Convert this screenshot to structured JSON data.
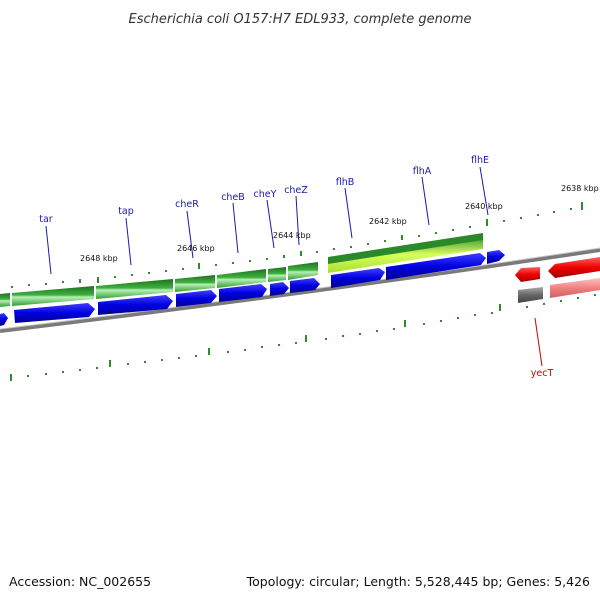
{
  "title": "Escherichia coli O157:H7 EDL933, complete genome",
  "footer": {
    "accession": "Accession: NC_002655",
    "summary": "Topology: circular; Length: 5,528,445 bp; Genes: 5,426"
  },
  "kbp_labels": [
    "2648 kbp",
    "2646 kbp",
    "2644 kbp",
    "2642 kbp",
    "2640 kbp",
    "2638 kbp"
  ],
  "genes_top": [
    "tar",
    "tap",
    "cheR",
    "cheB",
    "cheY",
    "cheZ",
    "flhB",
    "flhA",
    "flhE"
  ],
  "genes_bottom": [
    "yecT"
  ],
  "colors": {
    "cds_blue": "#0000e0",
    "gene_green": "#2a9a2a",
    "light_green": "#c8ff3c",
    "reverse_red": "#ee0000",
    "reverse_pink": "#f08080",
    "backbone_gray": "#777777",
    "tick_green": "#2e8b2e",
    "label_blue": "#1a1aaa",
    "label_red": "#cc0000"
  }
}
